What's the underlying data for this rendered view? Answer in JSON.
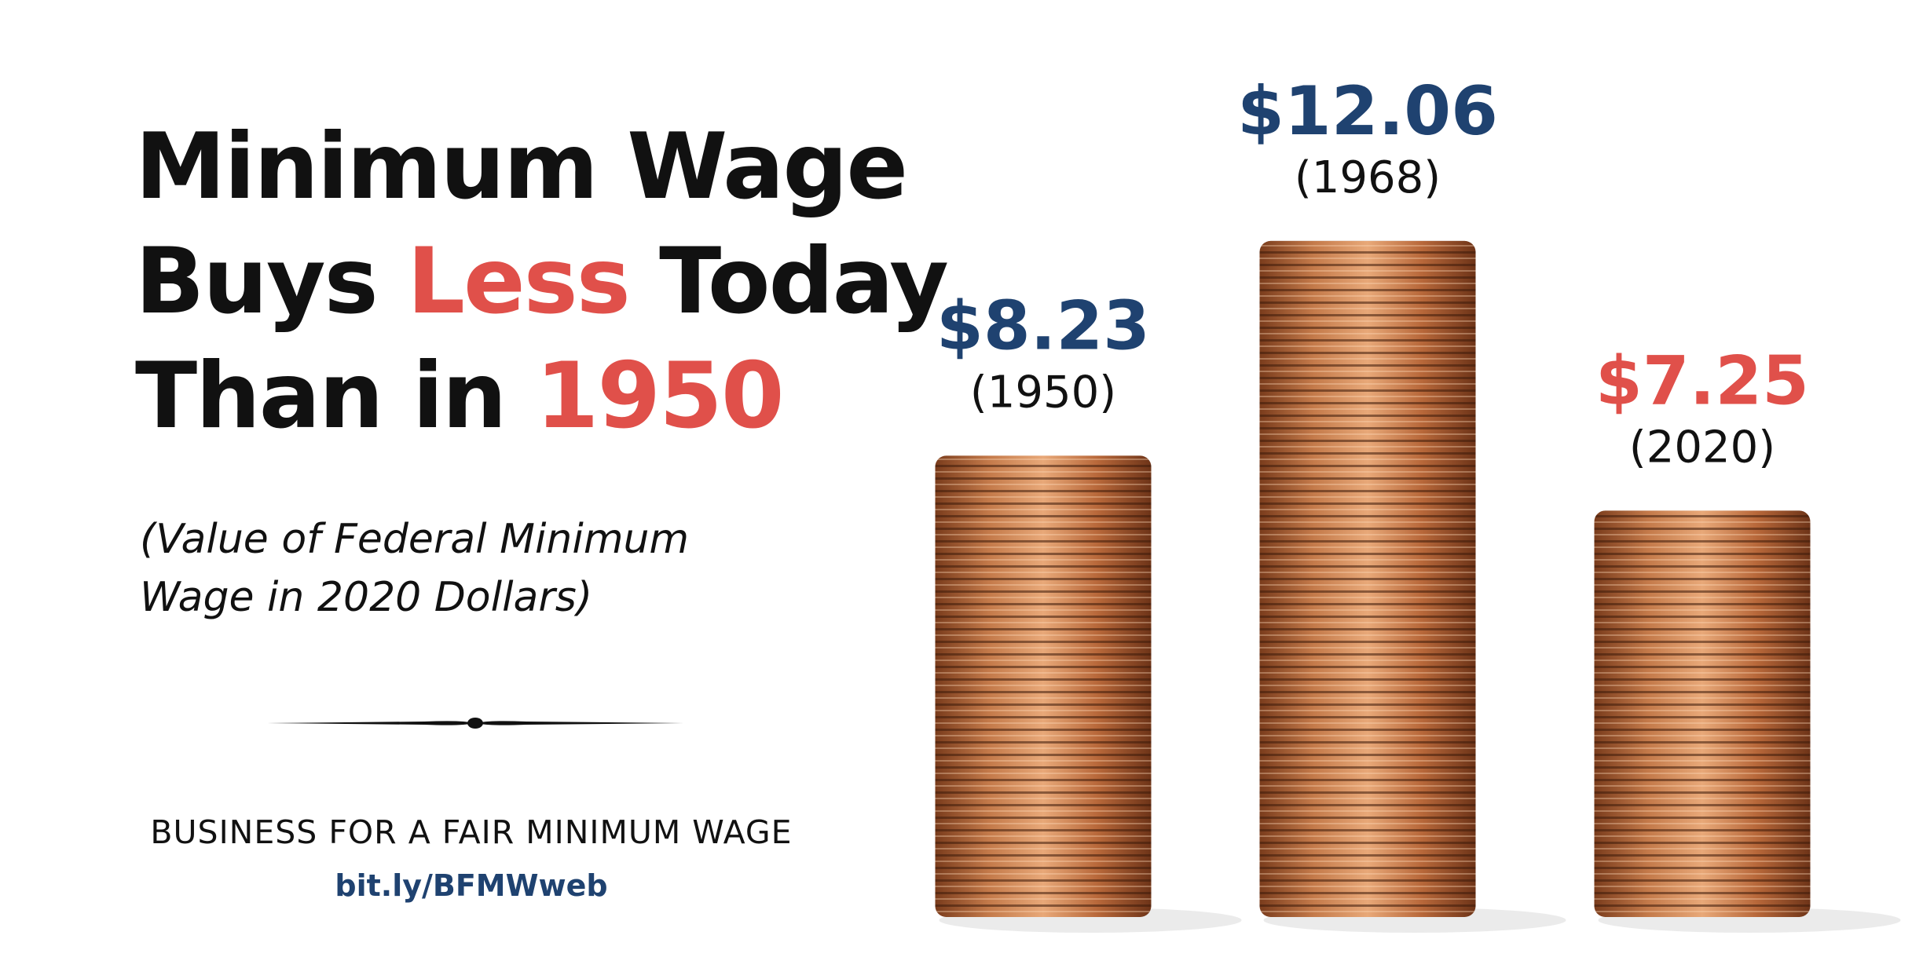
{
  "title_parts": [
    "Minimum Wage",
    "Buys",
    "Less",
    "Today",
    "Than in",
    "1950"
  ],
  "subtitle": "(Value of Federal Minimum Wage in 2020 Dollars)",
  "footer": "BUSINESS FOR A FAIR MINIMUM WAGE",
  "link": "bit.ly/BFMWweb",
  "chart_data": {
    "type": "bar",
    "categories": [
      "(1950)",
      "(1968)",
      "(2020)"
    ],
    "values": [
      8.23,
      12.06,
      7.25
    ],
    "value_labels": [
      "$8.23",
      "$12.06",
      "$7.25"
    ],
    "label_colors": [
      "#1f4270",
      "#1f4270",
      "#e0504a"
    ],
    "color": "#b8683a"
  }
}
